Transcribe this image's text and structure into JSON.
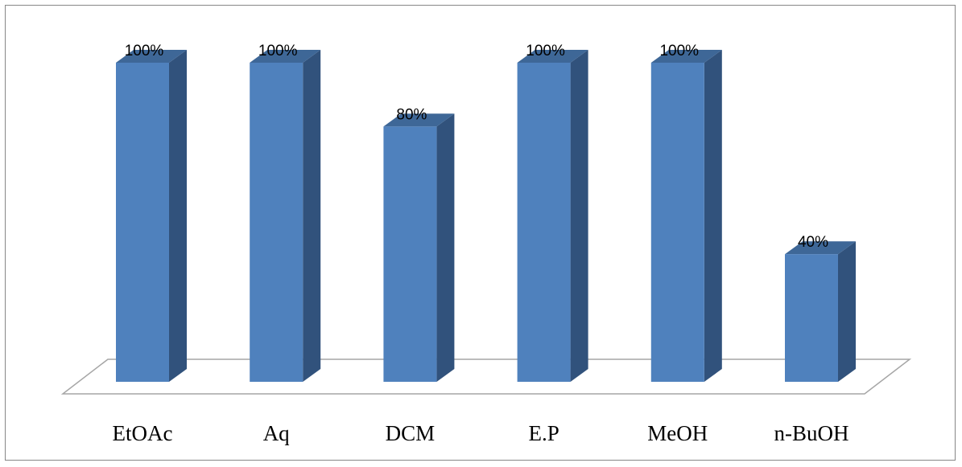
{
  "chart_data": {
    "type": "bar",
    "style": "3d-column",
    "categories": [
      "EtOAc",
      "Aq",
      "DCM",
      "E.P",
      "MeOH",
      "n-BuOH"
    ],
    "values": [
      100,
      100,
      80,
      100,
      100,
      40
    ],
    "data_labels": [
      "100%",
      "100%",
      "80%",
      "100%",
      "100%",
      "40%"
    ],
    "unit": "%",
    "ylim": [
      0,
      100
    ],
    "title": "",
    "xlabel": "",
    "ylabel": "",
    "grid": false,
    "legend": "none",
    "colors": {
      "bar_front": "#4f81bd",
      "bar_side": "#31527c",
      "bar_top": "#3e6797",
      "floor_stroke": "#a6a6a6",
      "frame_border": "#868686"
    }
  }
}
